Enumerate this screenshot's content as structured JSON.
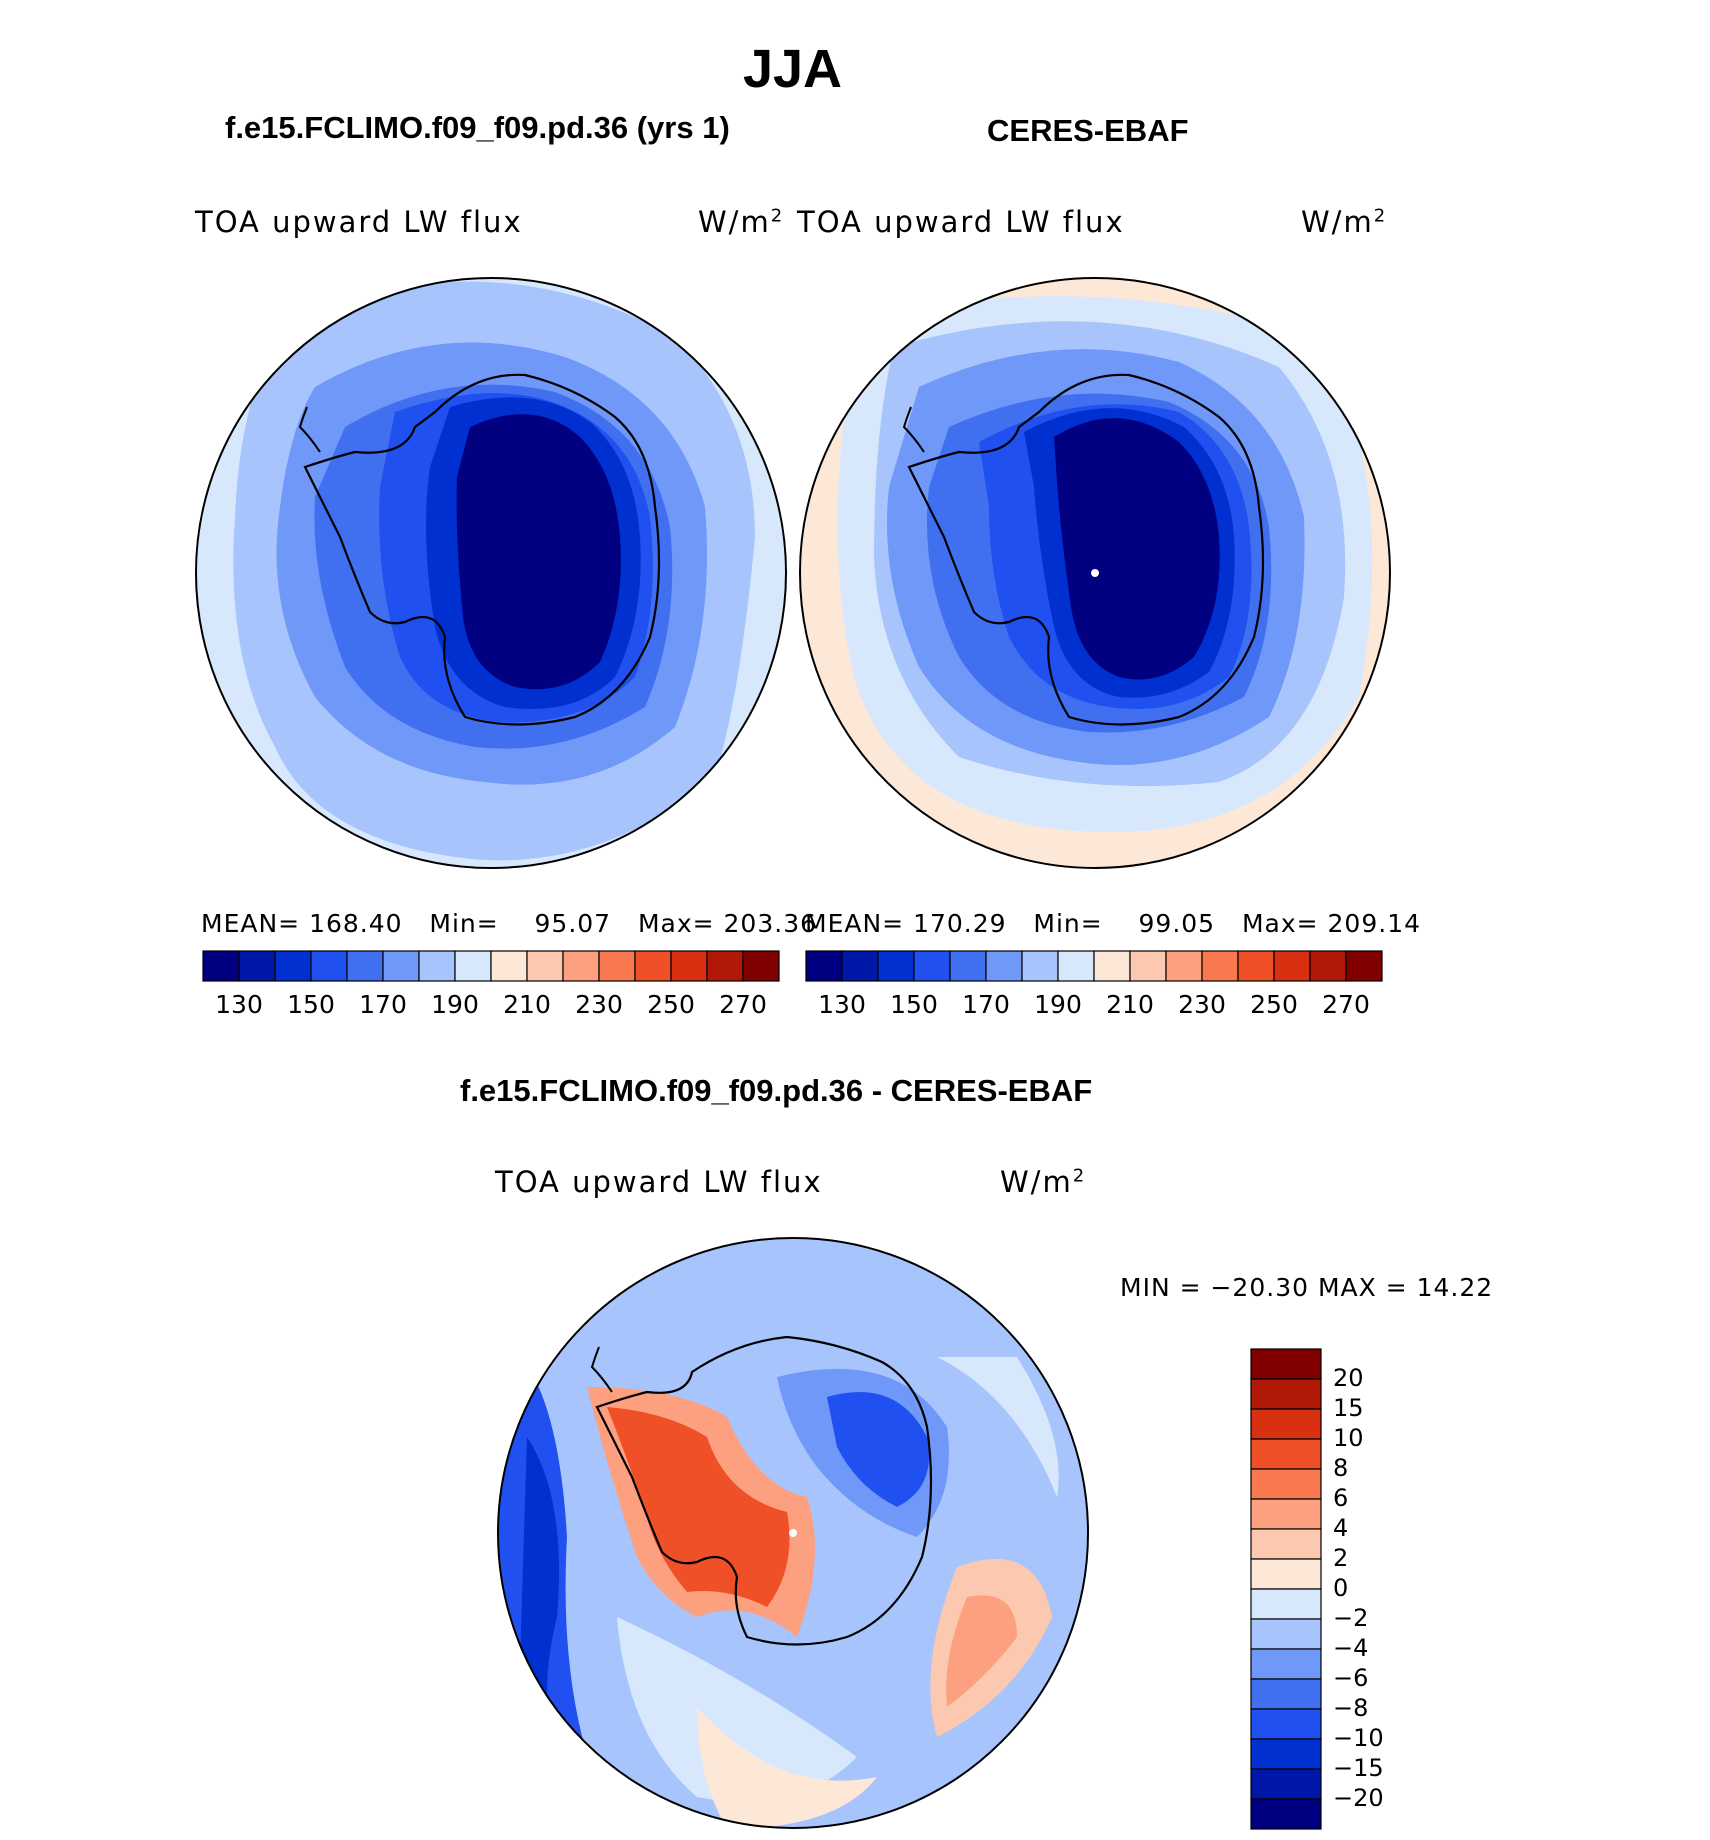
{
  "figure": {
    "season": "JJA",
    "model_title": "f.e15.FCLIMO.f09_f09.pd.36 (yrs 1)",
    "obs_title": "CERES-EBAF",
    "diff_title": "f.e15.FCLIMO.f09_f09.pd.36 - CERES-EBAF"
  },
  "panels": {
    "model": {
      "variable": "TOA upward LW flux",
      "units_base": "W/m",
      "units_exp": "2",
      "mean_label": "MEAN=",
      "mean": "168.40",
      "min_label": "Min=",
      "min": "95.07",
      "max_label": "Max=",
      "max": "203.36"
    },
    "obs": {
      "variable": "TOA upward LW flux",
      "units_base": "W/m",
      "units_exp": "2",
      "mean_label": "MEAN=",
      "mean": "170.29",
      "min_label": "Min=",
      "min": "99.05",
      "max_label": "Max=",
      "max": "209.14"
    },
    "diff": {
      "variable": "TOA upward LW flux",
      "units_base": "W/m",
      "units_exp": "2",
      "minmax": "MIN = −20.30 MAX =   14.22"
    }
  },
  "colorbar_abs": {
    "colors": [
      "#000080",
      "#0018a8",
      "#0030d0",
      "#2050f0",
      "#4070f0",
      "#7098f8",
      "#a8c4fc",
      "#d8e8fc",
      "#fde8d8",
      "#fcc8b0",
      "#fca080",
      "#f87850",
      "#f05028",
      "#d83010",
      "#b01808",
      "#800000"
    ],
    "tick_labels": [
      "130",
      "150",
      "170",
      "190",
      "210",
      "230",
      "250",
      "270"
    ]
  },
  "colorbar_diff": {
    "colors_top_to_bottom": [
      "#800000",
      "#b01808",
      "#d83010",
      "#f05028",
      "#f87850",
      "#fca080",
      "#fcc8b0",
      "#fde8d8",
      "#d8e8fc",
      "#a8c4fc",
      "#7098f8",
      "#4070f0",
      "#2050f0",
      "#0030d0",
      "#0018a8",
      "#000080"
    ],
    "tick_labels": [
      "20",
      "15",
      "10",
      "8",
      "6",
      "4",
      "2",
      "0",
      "−2",
      "−4",
      "−6",
      "−8",
      "−10",
      "−15",
      "−20"
    ]
  },
  "map_colors": {
    "ring_outer": "#d8e8fc",
    "ring_2": "#a8c4fc",
    "ring_3": "#7098f8",
    "ring_4": "#4070f0",
    "ring_5": "#2050f0",
    "ring_6": "#0030d0",
    "core": "#000080",
    "warm_edge": "#fde8d8",
    "diff_pos_strong": "#f05028",
    "diff_pos": "#fca080",
    "diff_pos_weak": "#fde8d8",
    "diff_neg_weak": "#d8e8fc",
    "diff_neg": "#7098f8",
    "diff_neg_strong": "#2050f0"
  }
}
